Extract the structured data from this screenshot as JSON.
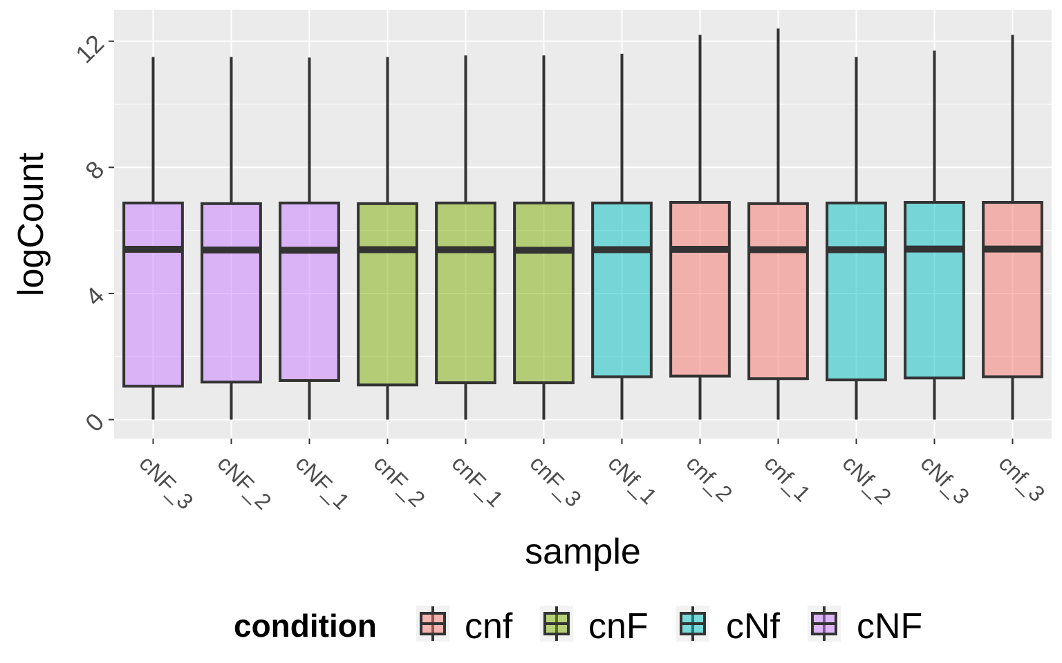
{
  "chart_data": {
    "type": "box",
    "xlabel": "sample",
    "ylabel": "logCount",
    "ylim": [
      -0.6,
      13.0
    ],
    "yticks": [
      0,
      4,
      8,
      12
    ],
    "grid": true,
    "legend_position": "bottom",
    "legend": {
      "title": "condition",
      "entries": [
        {
          "label": "cnf",
          "color": "#F8766D"
        },
        {
          "label": "cnF",
          "color": "#7CAE00"
        },
        {
          "label": "cNf",
          "color": "#00BFC4"
        },
        {
          "label": "cNF",
          "color": "#C77CFF"
        }
      ]
    },
    "categories": [
      "cNF_3",
      "cNF_2",
      "cNF_1",
      "cnF_2",
      "cnF_1",
      "cnF_3",
      "cNf_1",
      "cnf_2",
      "cnf_1",
      "cNf_2",
      "cNf_3",
      "cnf_3"
    ],
    "boxes": [
      {
        "sample": "cNF_3",
        "condition": "cNF",
        "min": 0,
        "q1": 1.06,
        "median": 5.4,
        "q3": 6.87,
        "max": 11.5
      },
      {
        "sample": "cNF_2",
        "condition": "cNF",
        "min": 0,
        "q1": 1.19,
        "median": 5.38,
        "q3": 6.85,
        "max": 11.5
      },
      {
        "sample": "cNF_1",
        "condition": "cNF",
        "min": 0,
        "q1": 1.24,
        "median": 5.37,
        "q3": 6.87,
        "max": 11.48
      },
      {
        "sample": "cnF_2",
        "condition": "cnF",
        "min": 0,
        "q1": 1.1,
        "median": 5.39,
        "q3": 6.85,
        "max": 11.5
      },
      {
        "sample": "cnF_1",
        "condition": "cnF",
        "min": 0,
        "q1": 1.17,
        "median": 5.39,
        "q3": 6.87,
        "max": 11.55
      },
      {
        "sample": "cnF_3",
        "condition": "cnF",
        "min": 0,
        "q1": 1.17,
        "median": 5.37,
        "q3": 6.87,
        "max": 11.55
      },
      {
        "sample": "cNf_1",
        "condition": "cNf",
        "min": 0,
        "q1": 1.36,
        "median": 5.39,
        "q3": 6.87,
        "max": 11.6
      },
      {
        "sample": "cnf_2",
        "condition": "cnf",
        "min": 0,
        "q1": 1.38,
        "median": 5.4,
        "q3": 6.89,
        "max": 12.2
      },
      {
        "sample": "cnf_1",
        "condition": "cnf",
        "min": 0,
        "q1": 1.3,
        "median": 5.39,
        "q3": 6.85,
        "max": 12.4
      },
      {
        "sample": "cNf_2",
        "condition": "cNf",
        "min": 0,
        "q1": 1.26,
        "median": 5.39,
        "q3": 6.87,
        "max": 11.5
      },
      {
        "sample": "cNf_3",
        "condition": "cNf",
        "min": 0,
        "q1": 1.32,
        "median": 5.41,
        "q3": 6.89,
        "max": 11.7
      },
      {
        "sample": "cnf_3",
        "condition": "cnf",
        "min": 0,
        "q1": 1.36,
        "median": 5.41,
        "q3": 6.89,
        "max": 12.2
      }
    ]
  }
}
